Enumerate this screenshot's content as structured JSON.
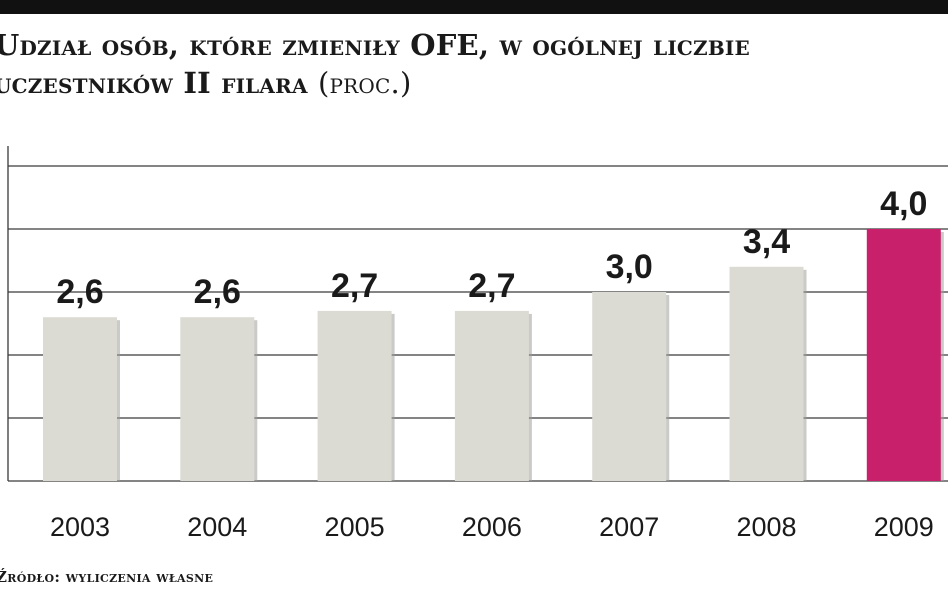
{
  "title": {
    "line1": "Udział osób, które zmieniły OFE, w ogólnej liczbie",
    "line2": "uczestników II filara",
    "unit": "(proc.)"
  },
  "source": "Źródło: wyliczenia własne",
  "colors": {
    "bar_default": "#dcdbd3",
    "bar_highlight": "#c8206a",
    "gridline": "#3a3a3a",
    "text": "#1a1a1a"
  },
  "chart_data": {
    "type": "bar",
    "categories": [
      "2003",
      "2004",
      "2005",
      "2006",
      "2007",
      "2008",
      "2009"
    ],
    "values": [
      2.6,
      2.6,
      2.7,
      2.7,
      3.0,
      3.4,
      4.0
    ],
    "value_labels": [
      "2,6",
      "2,6",
      "2,7",
      "2,7",
      "3,0",
      "3,4",
      "4,0"
    ],
    "highlight_index": 6,
    "ylim": [
      0,
      5
    ],
    "grid": true,
    "xlabel": "",
    "ylabel": ""
  }
}
